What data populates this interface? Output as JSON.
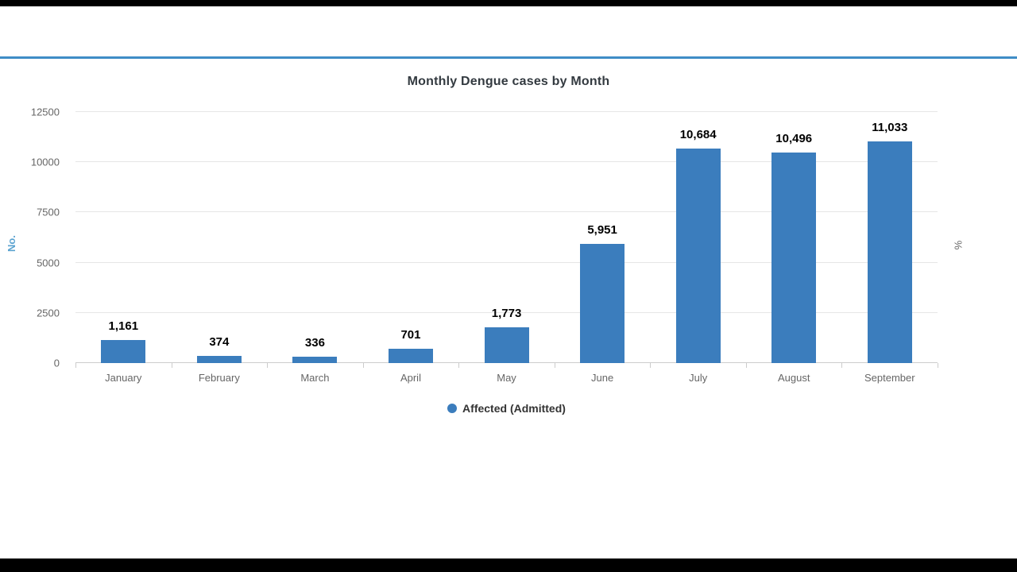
{
  "page": {
    "accent_color": "#3f8dc6"
  },
  "chart_data": {
    "type": "bar",
    "title": "Monthly Dengue cases by Month",
    "categories": [
      "January",
      "February",
      "March",
      "April",
      "May",
      "June",
      "July",
      "August",
      "September"
    ],
    "values": [
      1161,
      374,
      336,
      701,
      1773,
      5951,
      10684,
      10496,
      11033
    ],
    "value_labels": [
      "1,161",
      "374",
      "336",
      "701",
      "1,773",
      "5,951",
      "10,684",
      "10,496",
      "11,033"
    ],
    "series_name": "Affected (Admitted)",
    "bar_color": "#3b7dbd",
    "xlabel": "",
    "ylabel_left": "No.",
    "ylabel_right": "%",
    "ylim": [
      0,
      12500
    ],
    "yticks": [
      0,
      2500,
      5000,
      7500,
      10000,
      12500
    ],
    "grid": true,
    "legend_position": "bottom",
    "legend": [
      {
        "label": "Affected (Admitted)",
        "color": "#3b7dbd"
      }
    ]
  }
}
